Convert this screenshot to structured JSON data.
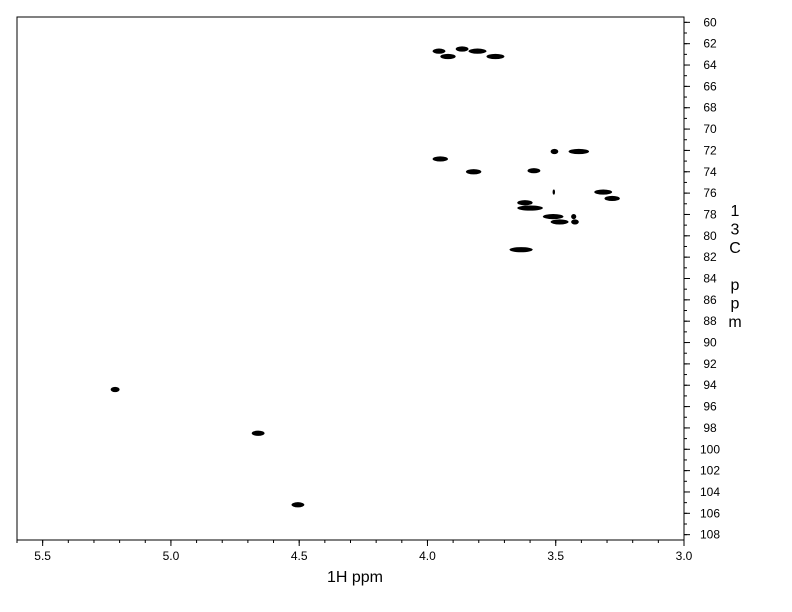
{
  "chart_data": {
    "type": "scatter",
    "title": "",
    "xlabel": "1H ppm",
    "ylabel_chars": [
      "1",
      "3",
      "C",
      "",
      "p",
      "p",
      "m"
    ],
    "xlim": [
      5.6,
      3.0
    ],
    "ylim": [
      59.5,
      108.5
    ],
    "x_ticks": [
      "5.5",
      "5.0",
      "4.5",
      "4.0",
      "3.5",
      "3.0"
    ],
    "x_tick_values": [
      5.5,
      5.0,
      4.5,
      4.0,
      3.5,
      3.0
    ],
    "y_ticks": [
      "60",
      "62",
      "64",
      "66",
      "68",
      "70",
      "72",
      "74",
      "76",
      "78",
      "80",
      "82",
      "84",
      "86",
      "88",
      "90",
      "92",
      "94",
      "96",
      "98",
      "100",
      "102",
      "104",
      "106",
      "108"
    ],
    "y_tick_values": [
      60,
      62,
      64,
      66,
      68,
      70,
      72,
      74,
      76,
      78,
      80,
      82,
      84,
      86,
      88,
      90,
      92,
      94,
      96,
      98,
      100,
      102,
      104,
      106,
      108
    ],
    "x_direction": "reversed",
    "y_direction": "downward",
    "grid": false,
    "peak_color": "#000000",
    "peaks": [
      {
        "x1": 3.98,
        "x2": 3.93,
        "y": 62.7
      },
      {
        "x1": 3.89,
        "x2": 3.84,
        "y": 62.5
      },
      {
        "x1": 3.84,
        "x2": 3.77,
        "y": 62.7
      },
      {
        "x1": 3.95,
        "x2": 3.89,
        "y": 63.2
      },
      {
        "x1": 3.77,
        "x2": 3.7,
        "y": 63.2
      },
      {
        "x1": 3.98,
        "x2": 3.92,
        "y": 72.8
      },
      {
        "x1": 3.52,
        "x2": 3.49,
        "y": 72.1
      },
      {
        "x1": 3.45,
        "x2": 3.37,
        "y": 72.1
      },
      {
        "x1": 3.85,
        "x2": 3.79,
        "y": 74.0
      },
      {
        "x1": 3.61,
        "x2": 3.56,
        "y": 73.9
      },
      {
        "x1": 3.35,
        "x2": 3.28,
        "y": 75.9
      },
      {
        "x1": 3.31,
        "x2": 3.25,
        "y": 76.5
      },
      {
        "x1": 3.65,
        "x2": 3.59,
        "y": 76.9
      },
      {
        "x1": 3.65,
        "x2": 3.55,
        "y": 77.4
      },
      {
        "x1": 3.55,
        "x2": 3.47,
        "y": 78.2
      },
      {
        "x1": 3.52,
        "x2": 3.45,
        "y": 78.7
      },
      {
        "x1": 3.44,
        "x2": 3.41,
        "y": 78.7
      },
      {
        "x1": 3.44,
        "x2": 3.42,
        "y": 78.2
      },
      {
        "x1": 3.51,
        "x2": 3.505,
        "y": 75.9
      },
      {
        "x1": 3.68,
        "x2": 3.59,
        "y": 81.3
      },
      {
        "x1": 5.235,
        "x2": 5.2,
        "y": 94.4
      },
      {
        "x1": 4.685,
        "x2": 4.635,
        "y": 98.5
      },
      {
        "x1": 4.53,
        "x2": 4.48,
        "y": 105.2
      }
    ]
  }
}
